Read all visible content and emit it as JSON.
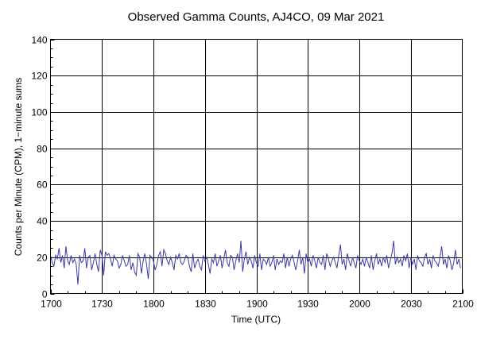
{
  "chart_data": {
    "type": "line",
    "title": "Observed Gamma Counts, AJ4CO, 09 Mar 2021",
    "xlabel": "Time (UTC)",
    "ylabel": "Counts per Minute (CPM), 1−minute sums",
    "x_ticks": [
      "1700",
      "1730",
      "1800",
      "1830",
      "1900",
      "1930",
      "2000",
      "2030",
      "2100"
    ],
    "y_ticks": [
      "0",
      "20",
      "40",
      "60",
      "80",
      "100",
      "120",
      "140"
    ],
    "xlim_minutes": [
      0,
      240
    ],
    "ylim": [
      0,
      140
    ],
    "grid": true,
    "line_color": "#3b3ba8",
    "series": [
      {
        "x_start": "17:00",
        "x_step_minutes": 1,
        "values": [
          21,
          17,
          15,
          21,
          19,
          25,
          17,
          21,
          14,
          26,
          18,
          16,
          21,
          17,
          19,
          16,
          5,
          21,
          17,
          18,
          25,
          14,
          20,
          21,
          13,
          17,
          22,
          16,
          12,
          24,
          21,
          10,
          23,
          21,
          22,
          19,
          15,
          21,
          19,
          18,
          14,
          16,
          21,
          18,
          15,
          16,
          21,
          13,
          17,
          12,
          10,
          22,
          20,
          11,
          18,
          22,
          16,
          8,
          21,
          20,
          18,
          13,
          16,
          21,
          23,
          15,
          24,
          22,
          18,
          16,
          20,
          17,
          13,
          21,
          19,
          22,
          17,
          16,
          18,
          21,
          20,
          15,
          12,
          22,
          14,
          17,
          19,
          15,
          13,
          21,
          18,
          20,
          16,
          11,
          19,
          17,
          22,
          15,
          18,
          21,
          14,
          19,
          24,
          17,
          15,
          21,
          20,
          13,
          18,
          22,
          17,
          29,
          12,
          19,
          23,
          16,
          20,
          18,
          14,
          21,
          17,
          15,
          22,
          13,
          19,
          18,
          16,
          20,
          15,
          17,
          21,
          13,
          19,
          16,
          18,
          17,
          22,
          14,
          20,
          15,
          19,
          21,
          17,
          13,
          18,
          24,
          16,
          20,
          11,
          22,
          17,
          19,
          15,
          21,
          18,
          14,
          20,
          17,
          16,
          21,
          13,
          22,
          19,
          15,
          18,
          20,
          17,
          14,
          21,
          27,
          16,
          19,
          13,
          22,
          18,
          15,
          20,
          17,
          14,
          21,
          18,
          16,
          19,
          15,
          20,
          17,
          14,
          21,
          13,
          18,
          22,
          16,
          19,
          15,
          20,
          17,
          21,
          14,
          18,
          22,
          29,
          16,
          20,
          17,
          19,
          15,
          21,
          18,
          22,
          14,
          20,
          16,
          19,
          13,
          21,
          18,
          17,
          15,
          20,
          22,
          16,
          19,
          14,
          21,
          18,
          17,
          15,
          20,
          26,
          16,
          19,
          14,
          21,
          18,
          13,
          17,
          24,
          16,
          19,
          14
        ]
      }
    ]
  }
}
